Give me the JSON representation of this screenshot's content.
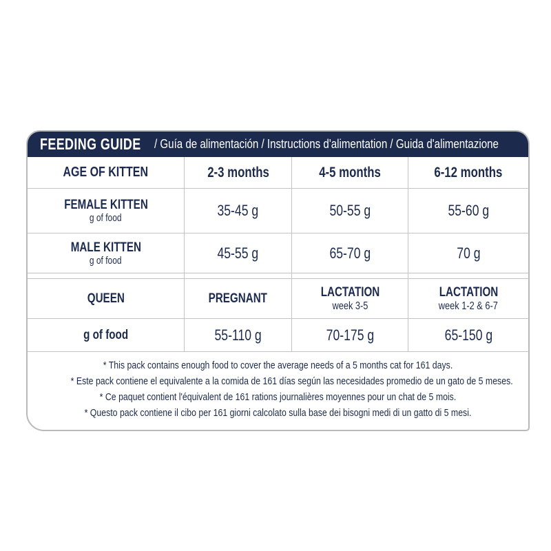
{
  "header": {
    "title": "FEEDING GUIDE",
    "subtitle": "/ Guía de alimentación / Instructions d'alimentation / Guida d'alimentazione"
  },
  "kitten_table": {
    "age_header": "AGE OF KITTEN",
    "age_columns": [
      "2-3 months",
      "4-5 months",
      "6-12 months"
    ],
    "rows": [
      {
        "label": "FEMALE KITTEN",
        "sublabel": "g of food",
        "values": [
          "35-45 g",
          "50-55 g",
          "55-60 g"
        ]
      },
      {
        "label": "MALE KITTEN",
        "sublabel": "g of food",
        "values": [
          "45-55 g",
          "65-70 g",
          "70 g"
        ]
      }
    ]
  },
  "queen_table": {
    "header": "QUEEN",
    "columns": [
      {
        "label": "PREGNANT",
        "sublabel": ""
      },
      {
        "label": "LACTATION",
        "sublabel": "week 3-5"
      },
      {
        "label": "LACTATION",
        "sublabel": "week 1-2 & 6-7"
      }
    ],
    "row": {
      "label": "g of food",
      "values": [
        "55-110 g",
        "70-175 g",
        "65-150 g"
      ]
    }
  },
  "footnotes": [
    "* This pack contains enough food to cover the average needs of a 5 months cat for 161 days.",
    "* Este pack contiene el equivalente a la comida de 161 días según las necesidades promedio de un gato de 5 meses.",
    "* Ce paquet contient l'équivalent de 161 rations journalières moyennes pour un chat de 5 mois.",
    "* Questo pack contiene il cibo per 161 giorni calcolato sulla base dei bisogni medi di un gatto di 5 mesi."
  ],
  "colors": {
    "navy": "#1c2b4d",
    "text_navy": "#1b2a4e",
    "border_gray": "#c3c3c3"
  }
}
